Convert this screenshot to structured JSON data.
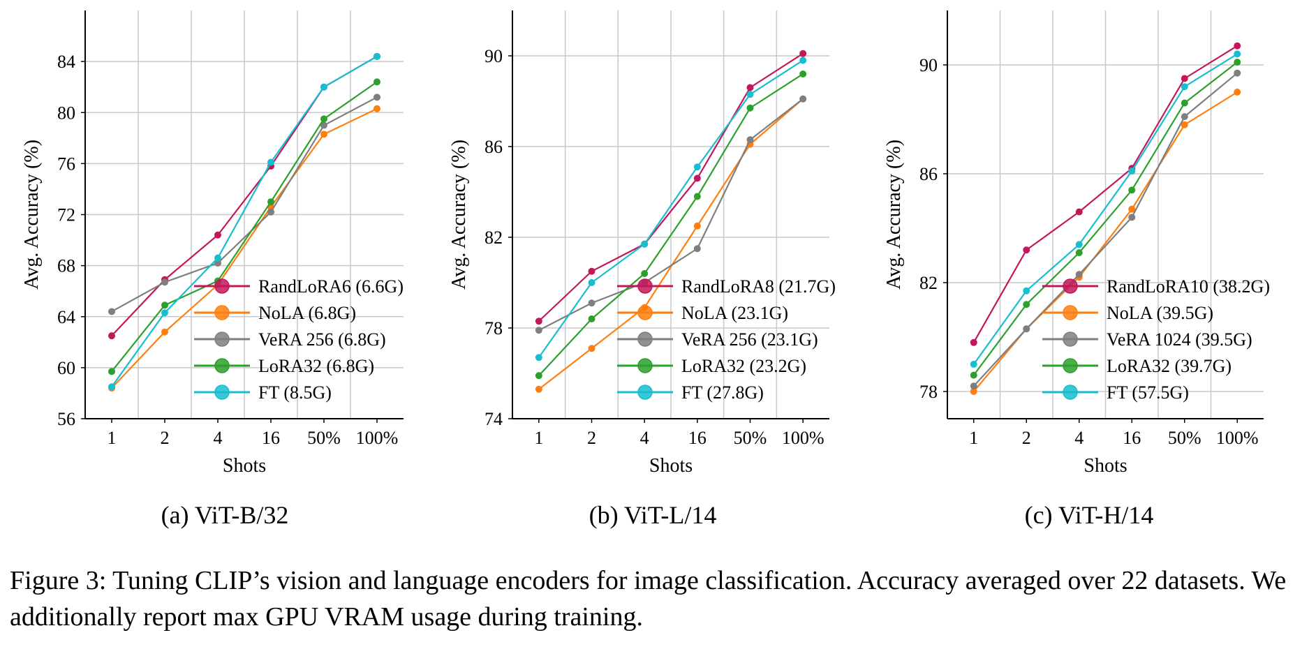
{
  "figure": {
    "caption": "Figure 3: Tuning CLIP’s vision and language encoders for image classification. Accuracy averaged over 22 datasets. We additionally report max GPU VRAM usage during training."
  },
  "colors": {
    "RandLoRA": "#c2185b",
    "NoLA": "#ff7f0e",
    "VeRA": "#7f7f7f",
    "LoRA": "#2ca02c",
    "FT": "#17becf",
    "grid": "#c8c8c8"
  },
  "chart_data": [
    {
      "type": "line",
      "caption": "(a) ViT-B/32",
      "xlabel": "Shots",
      "ylabel": "Avg. Accuracy (%)",
      "categories": [
        "1",
        "2",
        "4",
        "16",
        "50%",
        "100%"
      ],
      "ylim": [
        56,
        88
      ],
      "yticks": [
        56,
        60,
        64,
        68,
        72,
        76,
        80,
        84
      ],
      "grid": true,
      "legend_position": "lower-right",
      "series": [
        {
          "name": "RandLoRA6 (6.6G)",
          "color_key": "RandLoRA",
          "values": [
            62.5,
            66.9,
            70.4,
            75.8,
            82.0,
            84.4
          ]
        },
        {
          "name": "NoLA (6.8G)",
          "color_key": "NoLA",
          "values": [
            58.4,
            62.8,
            66.5,
            72.6,
            78.3,
            80.3
          ]
        },
        {
          "name": "VeRA 256 (6.8G)",
          "color_key": "VeRA",
          "values": [
            64.4,
            66.7,
            68.2,
            72.2,
            79.0,
            81.2
          ]
        },
        {
          "name": "LoRA32 (6.8G)",
          "color_key": "LoRA",
          "values": [
            59.7,
            64.9,
            66.8,
            73.0,
            79.5,
            82.4
          ]
        },
        {
          "name": "FT (8.5G)",
          "color_key": "FT",
          "values": [
            58.5,
            64.3,
            68.6,
            76.1,
            82.0,
            84.4
          ]
        }
      ]
    },
    {
      "type": "line",
      "caption": "(b) ViT-L/14",
      "xlabel": "Shots",
      "ylabel": "Avg. Accuracy (%)",
      "categories": [
        "1",
        "2",
        "4",
        "16",
        "50%",
        "100%"
      ],
      "ylim": [
        74,
        92
      ],
      "yticks": [
        74,
        78,
        82,
        86,
        90
      ],
      "grid": true,
      "legend_position": "lower-right",
      "series": [
        {
          "name": "RandLoRA8 (21.7G)",
          "color_key": "RandLoRA",
          "values": [
            78.3,
            80.5,
            81.7,
            84.6,
            88.6,
            90.1
          ]
        },
        {
          "name": "NoLA (23.1G)",
          "color_key": "NoLA",
          "values": [
            75.3,
            77.1,
            78.9,
            82.5,
            86.1,
            88.1
          ]
        },
        {
          "name": "VeRA 256 (23.1G)",
          "color_key": "VeRA",
          "values": [
            77.9,
            79.1,
            80.0,
            81.5,
            86.3,
            88.1
          ]
        },
        {
          "name": "LoRA32 (23.2G)",
          "color_key": "LoRA",
          "values": [
            75.9,
            78.4,
            80.4,
            83.8,
            87.7,
            89.2
          ]
        },
        {
          "name": "FT (27.8G)",
          "color_key": "FT",
          "values": [
            76.7,
            80.0,
            81.7,
            85.1,
            88.3,
            89.8
          ]
        }
      ]
    },
    {
      "type": "line",
      "caption": "(c) ViT-H/14",
      "xlabel": "Shots",
      "ylabel": "Avg. Accuracy (%)",
      "categories": [
        "1",
        "2",
        "4",
        "16",
        "50%",
        "100%"
      ],
      "ylim": [
        77,
        92
      ],
      "yticks": [
        78,
        82,
        86,
        90
      ],
      "grid": true,
      "legend_position": "lower-right",
      "series": [
        {
          "name": "RandLoRA10 (38.2G)",
          "color_key": "RandLoRA",
          "values": [
            79.8,
            83.2,
            84.6,
            86.2,
            89.5,
            90.7
          ]
        },
        {
          "name": "NoLA (39.5G)",
          "color_key": "NoLA",
          "values": [
            78.0,
            80.3,
            82.2,
            84.7,
            87.8,
            89.0
          ]
        },
        {
          "name": "VeRA 1024 (39.5G)",
          "color_key": "VeRA",
          "values": [
            78.2,
            80.3,
            82.3,
            84.4,
            88.1,
            89.7
          ]
        },
        {
          "name": "LoRA32 (39.7G)",
          "color_key": "LoRA",
          "values": [
            78.6,
            81.2,
            83.1,
            85.4,
            88.6,
            90.1
          ]
        },
        {
          "name": "FT (57.5G)",
          "color_key": "FT",
          "values": [
            79.0,
            81.7,
            83.4,
            86.1,
            89.2,
            90.4
          ]
        }
      ]
    }
  ]
}
